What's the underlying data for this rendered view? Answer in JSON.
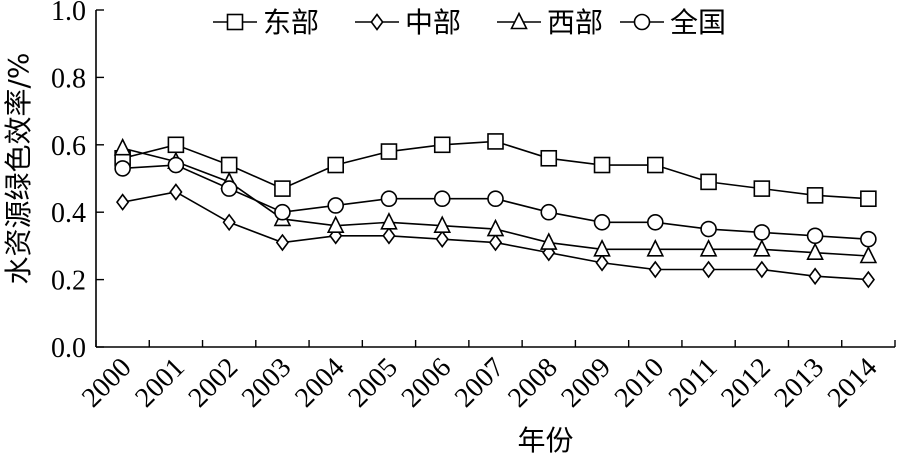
{
  "chart_data": {
    "type": "line",
    "title": "",
    "xlabel": "年份",
    "ylabel": "水资源绿色效率/%",
    "ylim": [
      0,
      1.0
    ],
    "yticks": [
      "0.0",
      "0.2",
      "0.4",
      "0.6",
      "0.8",
      "1.0"
    ],
    "categories": [
      "2000",
      "2001",
      "2002",
      "2003",
      "2004",
      "2005",
      "2006",
      "2007",
      "2008",
      "2009",
      "2010",
      "2011",
      "2012",
      "2013",
      "2014"
    ],
    "legend_position": "top",
    "grid": false,
    "series": [
      {
        "name": "东部",
        "marker": "square",
        "values": [
          0.56,
          0.6,
          0.54,
          0.47,
          0.54,
          0.58,
          0.6,
          0.61,
          0.56,
          0.54,
          0.54,
          0.49,
          0.47,
          0.45,
          0.44
        ]
      },
      {
        "name": "中部",
        "marker": "diamond",
        "values": [
          0.43,
          0.46,
          0.37,
          0.31,
          0.33,
          0.33,
          0.32,
          0.31,
          0.28,
          0.25,
          0.23,
          0.23,
          0.23,
          0.21,
          0.2
        ]
      },
      {
        "name": "西部",
        "marker": "triangle",
        "values": [
          0.59,
          0.55,
          0.49,
          0.38,
          0.36,
          0.37,
          0.36,
          0.35,
          0.31,
          0.29,
          0.29,
          0.29,
          0.29,
          0.28,
          0.27
        ]
      },
      {
        "name": "全国",
        "marker": "circle",
        "values": [
          0.53,
          0.54,
          0.47,
          0.4,
          0.42,
          0.44,
          0.44,
          0.44,
          0.4,
          0.37,
          0.37,
          0.35,
          0.34,
          0.33,
          0.32
        ]
      }
    ]
  }
}
